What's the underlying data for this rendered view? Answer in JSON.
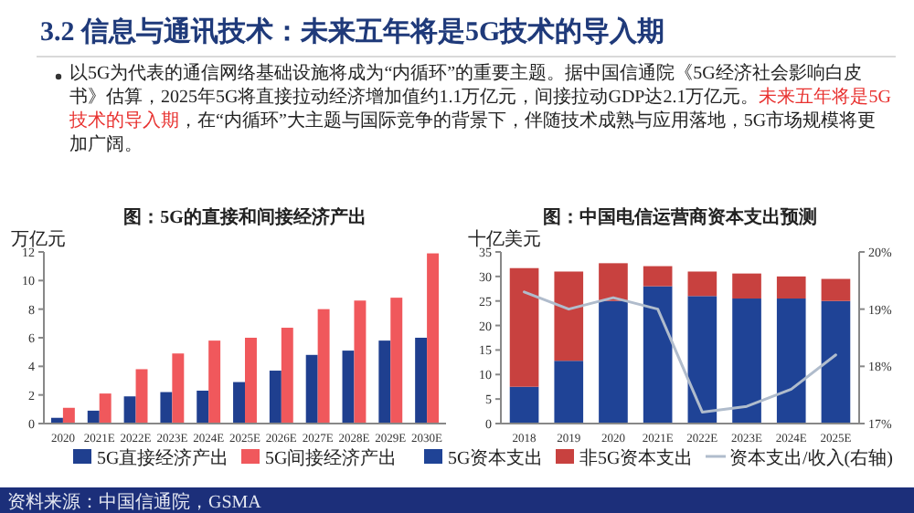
{
  "chart_data": [
    {
      "type": "other",
      "title": "3.2 信息与通讯技术：未来五年将是5G技术的导入期",
      "annotations": [
        "以5G为代表的通信网络基础设施将成为“内循环”的重要主题。据中国信通院《5G经济社会影响白皮书》估算，2025年5G将直接拉动经济增加值约1.1万亿元，间接拉动GDP达2.1万亿元。",
        "未来五年将是5G技术的导入期",
        "，在“内循环”大主题与国际竞争的背景下，伴随技术成熟与应用落地，5G市场规模将更加广阔。",
        "资料来源：中国信通院，GSMA"
      ]
    },
    {
      "type": "bar",
      "title": "图：5G的直接和间接经济产出",
      "ylabel": "万亿元",
      "categories": [
        "2020",
        "2021E",
        "2022E",
        "2023E",
        "2024E",
        "2025E",
        "2026E",
        "2027E",
        "2028E",
        "2029E",
        "2030E"
      ],
      "series": [
        {
          "name": "5G直接经济产出",
          "color": "#1f3f8f",
          "values": [
            0.4,
            0.9,
            1.9,
            2.2,
            2.3,
            2.9,
            3.7,
            4.8,
            5.1,
            5.8,
            6.0
          ]
        },
        {
          "name": "5G间接经济产出",
          "color": "#f0585c",
          "values": [
            1.1,
            2.1,
            3.8,
            4.9,
            5.8,
            6.0,
            6.7,
            8.0,
            8.6,
            8.8,
            11.9
          ]
        }
      ],
      "ylim": [
        0,
        12
      ],
      "yticks": [
        0,
        2,
        4,
        6,
        8,
        10,
        12
      ],
      "legend": "bottom"
    },
    {
      "type": "bar",
      "stacked": true,
      "title": "图：中国电信运营商资本支出预测",
      "ylabel": "十亿美元",
      "categories": [
        "2018",
        "2019",
        "2020",
        "2021E",
        "2022E",
        "2023E",
        "2024E",
        "2025E"
      ],
      "series": [
        {
          "name": "5G资本支出",
          "color": "#1f4396",
          "values": [
            7.5,
            12.8,
            25,
            28,
            26,
            25.5,
            25.5,
            25
          ]
        },
        {
          "name": "非5G资本支出",
          "color": "#c8413f",
          "values": [
            24.2,
            18.2,
            7.7,
            4.1,
            5,
            5.1,
            4.5,
            4.5
          ]
        },
        {
          "name": "资本支出/收入(右轴)",
          "type": "line",
          "axis": "y2",
          "color": "#b0bccc",
          "values": [
            19.3,
            19.0,
            19.2,
            19.0,
            17.2,
            17.3,
            17.6,
            18.2
          ]
        }
      ],
      "ylim": [
        0,
        35
      ],
      "yticks": [
        0,
        5,
        10,
        15,
        20,
        25,
        30,
        35
      ],
      "y2lim": [
        17,
        20
      ],
      "y2ticks": [
        {
          "value": 17,
          "label": "17%"
        },
        {
          "value": 18,
          "label": "18%"
        },
        {
          "value": 19,
          "label": "19%"
        },
        {
          "value": 20,
          "label": "20%"
        }
      ],
      "legend": "bottom"
    }
  ]
}
